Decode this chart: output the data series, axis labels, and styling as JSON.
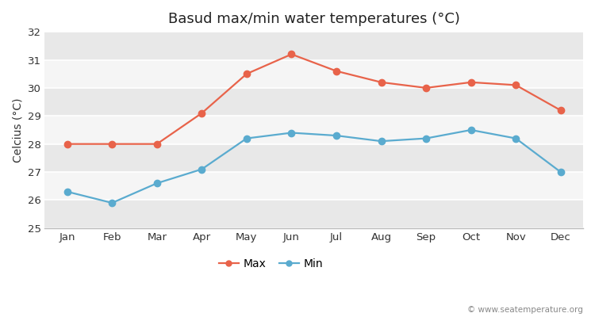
{
  "title": "Basud max/min water temperatures (°C)",
  "ylabel": "Celcius (°C)",
  "months": [
    "Jan",
    "Feb",
    "Mar",
    "Apr",
    "May",
    "Jun",
    "Jul",
    "Aug",
    "Sep",
    "Oct",
    "Nov",
    "Dec"
  ],
  "max_temps": [
    28.0,
    28.0,
    28.0,
    29.1,
    30.5,
    31.2,
    30.6,
    30.2,
    30.0,
    30.2,
    30.1,
    29.2
  ],
  "min_temps": [
    26.3,
    25.9,
    26.6,
    27.1,
    28.2,
    28.4,
    28.3,
    28.1,
    28.2,
    28.5,
    28.2,
    27.0
  ],
  "max_color": "#e8634a",
  "min_color": "#5aabcf",
  "fig_bg_color": "#ffffff",
  "band_colors": [
    "#e8e8e8",
    "#f5f5f5"
  ],
  "ylim": [
    25,
    32
  ],
  "yticks": [
    25,
    26,
    27,
    28,
    29,
    30,
    31,
    32
  ],
  "watermark": "© www.seatemperature.org",
  "legend_max": "Max",
  "legend_min": "Min",
  "title_fontsize": 13,
  "label_fontsize": 10,
  "tick_fontsize": 9.5,
  "marker_size": 6,
  "line_width": 1.6
}
